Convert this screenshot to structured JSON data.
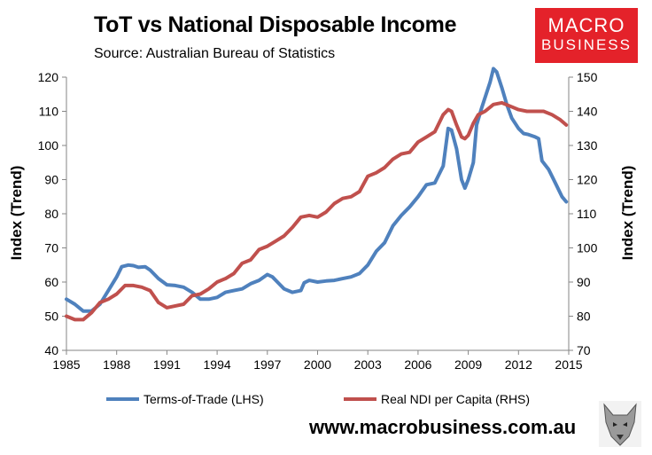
{
  "header": {
    "title": "ToT vs National Disposable Income",
    "subtitle": "Source: Australian Bureau of Statistics"
  },
  "logo": {
    "line1": "MACRO",
    "line2": "BUSINESS"
  },
  "footer": {
    "website": "www.macrobusiness.com.au"
  },
  "chart_data": {
    "type": "line",
    "xlim": [
      1985,
      2015
    ],
    "x_ticks": [
      1985,
      1988,
      1991,
      1994,
      1997,
      2000,
      2003,
      2006,
      2009,
      2012,
      2015
    ],
    "ylabel_left": "Index (Trend)",
    "ylabel_right": "Index (Trend)",
    "ylim_left": [
      40,
      120
    ],
    "y_ticks_left": [
      40,
      50,
      60,
      70,
      80,
      90,
      100,
      110,
      120
    ],
    "ylim_right": [
      70,
      150
    ],
    "y_ticks_right": [
      70,
      80,
      90,
      100,
      110,
      120,
      130,
      140,
      150
    ],
    "legend_position": "bottom",
    "grid": false,
    "series": [
      {
        "name": "Terms-of-Trade (LHS)",
        "axis": "left",
        "color": "#4f81bd",
        "points": [
          [
            1985.0,
            55
          ],
          [
            1985.5,
            53.5
          ],
          [
            1986.0,
            51.5
          ],
          [
            1986.5,
            51.5
          ],
          [
            1987.0,
            53.5
          ],
          [
            1987.5,
            57.5
          ],
          [
            1988.0,
            61.5
          ],
          [
            1988.3,
            64.5
          ],
          [
            1988.7,
            65
          ],
          [
            1989.0,
            64.8
          ],
          [
            1989.3,
            64.3
          ],
          [
            1989.7,
            64.5
          ],
          [
            1990.0,
            63.5
          ],
          [
            1990.5,
            61
          ],
          [
            1991.0,
            59.2
          ],
          [
            1991.5,
            59
          ],
          [
            1992.0,
            58.5
          ],
          [
            1992.5,
            57
          ],
          [
            1993.0,
            55
          ],
          [
            1993.5,
            55
          ],
          [
            1994.0,
            55.5
          ],
          [
            1994.5,
            57
          ],
          [
            1995.0,
            57.5
          ],
          [
            1995.5,
            58
          ],
          [
            1996.0,
            59.5
          ],
          [
            1996.5,
            60.5
          ],
          [
            1997.0,
            62.2
          ],
          [
            1997.3,
            61.5
          ],
          [
            1997.7,
            59.5
          ],
          [
            1998.0,
            58
          ],
          [
            1998.5,
            57
          ],
          [
            1999.0,
            57.5
          ],
          [
            1999.2,
            59.8
          ],
          [
            1999.5,
            60.5
          ],
          [
            2000.0,
            60
          ],
          [
            2000.5,
            60.3
          ],
          [
            2001.0,
            60.5
          ],
          [
            2001.5,
            61
          ],
          [
            2002.0,
            61.5
          ],
          [
            2002.5,
            62.5
          ],
          [
            2003.0,
            65
          ],
          [
            2003.5,
            69
          ],
          [
            2004.0,
            71.5
          ],
          [
            2004.5,
            76.5
          ],
          [
            2005.0,
            79.5
          ],
          [
            2005.5,
            82
          ],
          [
            2006.0,
            85
          ],
          [
            2006.5,
            88.5
          ],
          [
            2007.0,
            89
          ],
          [
            2007.5,
            94
          ],
          [
            2007.8,
            105
          ],
          [
            2008.0,
            104.5
          ],
          [
            2008.3,
            99
          ],
          [
            2008.6,
            90
          ],
          [
            2008.8,
            87.5
          ],
          [
            2009.0,
            90
          ],
          [
            2009.3,
            95
          ],
          [
            2009.5,
            106
          ],
          [
            2009.8,
            111
          ],
          [
            2010.0,
            114
          ],
          [
            2010.3,
            118.5
          ],
          [
            2010.5,
            122.5
          ],
          [
            2010.7,
            121.5
          ],
          [
            2011.0,
            117
          ],
          [
            2011.3,
            112
          ],
          [
            2011.6,
            108
          ],
          [
            2012.0,
            105
          ],
          [
            2012.3,
            103.5
          ],
          [
            2012.6,
            103.2
          ],
          [
            2013.0,
            102.5
          ],
          [
            2013.2,
            102
          ],
          [
            2013.4,
            95.5
          ],
          [
            2013.8,
            93
          ],
          [
            2014.2,
            89
          ],
          [
            2014.6,
            85
          ],
          [
            2014.85,
            83.5
          ]
        ]
      },
      {
        "name": "Real NDI per Capita (RHS)",
        "axis": "right",
        "color": "#c0504d",
        "points": [
          [
            1985.0,
            80
          ],
          [
            1985.5,
            79
          ],
          [
            1986.0,
            79
          ],
          [
            1986.5,
            81
          ],
          [
            1987.0,
            84
          ],
          [
            1987.5,
            85
          ],
          [
            1988.0,
            86.5
          ],
          [
            1988.5,
            89
          ],
          [
            1989.0,
            89
          ],
          [
            1989.5,
            88.5
          ],
          [
            1990.0,
            87.5
          ],
          [
            1990.5,
            84
          ],
          [
            1991.0,
            82.5
          ],
          [
            1991.5,
            83
          ],
          [
            1992.0,
            83.5
          ],
          [
            1992.5,
            86
          ],
          [
            1993.0,
            86.5
          ],
          [
            1993.5,
            88
          ],
          [
            1994.0,
            90
          ],
          [
            1994.5,
            91
          ],
          [
            1995.0,
            92.5
          ],
          [
            1995.5,
            95.5
          ],
          [
            1996.0,
            96.5
          ],
          [
            1996.5,
            99.5
          ],
          [
            1997.0,
            100.5
          ],
          [
            1997.5,
            102
          ],
          [
            1998.0,
            103.5
          ],
          [
            1998.5,
            106
          ],
          [
            1999.0,
            109
          ],
          [
            1999.5,
            109.5
          ],
          [
            2000.0,
            109
          ],
          [
            2000.5,
            110.5
          ],
          [
            2001.0,
            113
          ],
          [
            2001.5,
            114.5
          ],
          [
            2002.0,
            115
          ],
          [
            2002.5,
            116.5
          ],
          [
            2003.0,
            121
          ],
          [
            2003.5,
            122
          ],
          [
            2004.0,
            123.5
          ],
          [
            2004.5,
            126
          ],
          [
            2005.0,
            127.5
          ],
          [
            2005.5,
            128
          ],
          [
            2006.0,
            131
          ],
          [
            2006.5,
            132.5
          ],
          [
            2007.0,
            134
          ],
          [
            2007.5,
            139
          ],
          [
            2007.8,
            140.5
          ],
          [
            2008.0,
            140
          ],
          [
            2008.3,
            136
          ],
          [
            2008.6,
            132.5
          ],
          [
            2008.8,
            132
          ],
          [
            2009.0,
            133
          ],
          [
            2009.3,
            136.5
          ],
          [
            2009.6,
            139
          ],
          [
            2010.0,
            140
          ],
          [
            2010.5,
            142
          ],
          [
            2011.0,
            142.5
          ],
          [
            2011.5,
            141.5
          ],
          [
            2012.0,
            140.5
          ],
          [
            2012.5,
            140
          ],
          [
            2013.0,
            140
          ],
          [
            2013.5,
            140
          ],
          [
            2014.0,
            139
          ],
          [
            2014.5,
            137.5
          ],
          [
            2014.85,
            136
          ]
        ]
      }
    ]
  }
}
